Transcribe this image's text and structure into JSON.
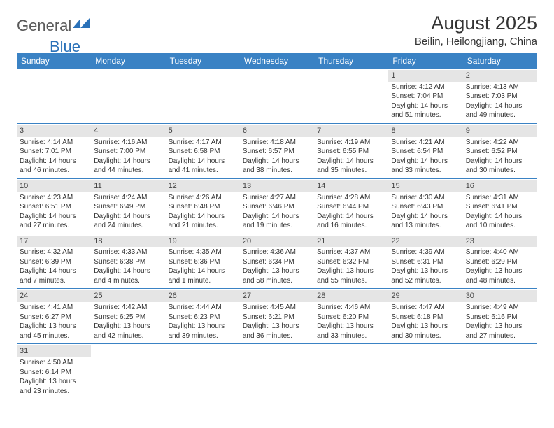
{
  "logo": {
    "text1": "General",
    "text2": "Blue"
  },
  "title": "August 2025",
  "location": "Beilin, Heilongjiang, China",
  "colors": {
    "header_bg": "#3a82c4",
    "header_text": "#ffffff",
    "daynum_bg": "#e5e5e5",
    "border": "#3a82c4",
    "logo_gray": "#5a5a5a",
    "logo_blue": "#2a71b8"
  },
  "weekdays": [
    "Sunday",
    "Monday",
    "Tuesday",
    "Wednesday",
    "Thursday",
    "Friday",
    "Saturday"
  ],
  "weeks": [
    [
      null,
      null,
      null,
      null,
      null,
      {
        "d": "1",
        "sr": "Sunrise: 4:12 AM",
        "ss": "Sunset: 7:04 PM",
        "dl1": "Daylight: 14 hours",
        "dl2": "and 51 minutes."
      },
      {
        "d": "2",
        "sr": "Sunrise: 4:13 AM",
        "ss": "Sunset: 7:03 PM",
        "dl1": "Daylight: 14 hours",
        "dl2": "and 49 minutes."
      }
    ],
    [
      {
        "d": "3",
        "sr": "Sunrise: 4:14 AM",
        "ss": "Sunset: 7:01 PM",
        "dl1": "Daylight: 14 hours",
        "dl2": "and 46 minutes."
      },
      {
        "d": "4",
        "sr": "Sunrise: 4:16 AM",
        "ss": "Sunset: 7:00 PM",
        "dl1": "Daylight: 14 hours",
        "dl2": "and 44 minutes."
      },
      {
        "d": "5",
        "sr": "Sunrise: 4:17 AM",
        "ss": "Sunset: 6:58 PM",
        "dl1": "Daylight: 14 hours",
        "dl2": "and 41 minutes."
      },
      {
        "d": "6",
        "sr": "Sunrise: 4:18 AM",
        "ss": "Sunset: 6:57 PM",
        "dl1": "Daylight: 14 hours",
        "dl2": "and 38 minutes."
      },
      {
        "d": "7",
        "sr": "Sunrise: 4:19 AM",
        "ss": "Sunset: 6:55 PM",
        "dl1": "Daylight: 14 hours",
        "dl2": "and 35 minutes."
      },
      {
        "d": "8",
        "sr": "Sunrise: 4:21 AM",
        "ss": "Sunset: 6:54 PM",
        "dl1": "Daylight: 14 hours",
        "dl2": "and 33 minutes."
      },
      {
        "d": "9",
        "sr": "Sunrise: 4:22 AM",
        "ss": "Sunset: 6:52 PM",
        "dl1": "Daylight: 14 hours",
        "dl2": "and 30 minutes."
      }
    ],
    [
      {
        "d": "10",
        "sr": "Sunrise: 4:23 AM",
        "ss": "Sunset: 6:51 PM",
        "dl1": "Daylight: 14 hours",
        "dl2": "and 27 minutes."
      },
      {
        "d": "11",
        "sr": "Sunrise: 4:24 AM",
        "ss": "Sunset: 6:49 PM",
        "dl1": "Daylight: 14 hours",
        "dl2": "and 24 minutes."
      },
      {
        "d": "12",
        "sr": "Sunrise: 4:26 AM",
        "ss": "Sunset: 6:48 PM",
        "dl1": "Daylight: 14 hours",
        "dl2": "and 21 minutes."
      },
      {
        "d": "13",
        "sr": "Sunrise: 4:27 AM",
        "ss": "Sunset: 6:46 PM",
        "dl1": "Daylight: 14 hours",
        "dl2": "and 19 minutes."
      },
      {
        "d": "14",
        "sr": "Sunrise: 4:28 AM",
        "ss": "Sunset: 6:44 PM",
        "dl1": "Daylight: 14 hours",
        "dl2": "and 16 minutes."
      },
      {
        "d": "15",
        "sr": "Sunrise: 4:30 AM",
        "ss": "Sunset: 6:43 PM",
        "dl1": "Daylight: 14 hours",
        "dl2": "and 13 minutes."
      },
      {
        "d": "16",
        "sr": "Sunrise: 4:31 AM",
        "ss": "Sunset: 6:41 PM",
        "dl1": "Daylight: 14 hours",
        "dl2": "and 10 minutes."
      }
    ],
    [
      {
        "d": "17",
        "sr": "Sunrise: 4:32 AM",
        "ss": "Sunset: 6:39 PM",
        "dl1": "Daylight: 14 hours",
        "dl2": "and 7 minutes."
      },
      {
        "d": "18",
        "sr": "Sunrise: 4:33 AM",
        "ss": "Sunset: 6:38 PM",
        "dl1": "Daylight: 14 hours",
        "dl2": "and 4 minutes."
      },
      {
        "d": "19",
        "sr": "Sunrise: 4:35 AM",
        "ss": "Sunset: 6:36 PM",
        "dl1": "Daylight: 14 hours",
        "dl2": "and 1 minute."
      },
      {
        "d": "20",
        "sr": "Sunrise: 4:36 AM",
        "ss": "Sunset: 6:34 PM",
        "dl1": "Daylight: 13 hours",
        "dl2": "and 58 minutes."
      },
      {
        "d": "21",
        "sr": "Sunrise: 4:37 AM",
        "ss": "Sunset: 6:32 PM",
        "dl1": "Daylight: 13 hours",
        "dl2": "and 55 minutes."
      },
      {
        "d": "22",
        "sr": "Sunrise: 4:39 AM",
        "ss": "Sunset: 6:31 PM",
        "dl1": "Daylight: 13 hours",
        "dl2": "and 52 minutes."
      },
      {
        "d": "23",
        "sr": "Sunrise: 4:40 AM",
        "ss": "Sunset: 6:29 PM",
        "dl1": "Daylight: 13 hours",
        "dl2": "and 48 minutes."
      }
    ],
    [
      {
        "d": "24",
        "sr": "Sunrise: 4:41 AM",
        "ss": "Sunset: 6:27 PM",
        "dl1": "Daylight: 13 hours",
        "dl2": "and 45 minutes."
      },
      {
        "d": "25",
        "sr": "Sunrise: 4:42 AM",
        "ss": "Sunset: 6:25 PM",
        "dl1": "Daylight: 13 hours",
        "dl2": "and 42 minutes."
      },
      {
        "d": "26",
        "sr": "Sunrise: 4:44 AM",
        "ss": "Sunset: 6:23 PM",
        "dl1": "Daylight: 13 hours",
        "dl2": "and 39 minutes."
      },
      {
        "d": "27",
        "sr": "Sunrise: 4:45 AM",
        "ss": "Sunset: 6:21 PM",
        "dl1": "Daylight: 13 hours",
        "dl2": "and 36 minutes."
      },
      {
        "d": "28",
        "sr": "Sunrise: 4:46 AM",
        "ss": "Sunset: 6:20 PM",
        "dl1": "Daylight: 13 hours",
        "dl2": "and 33 minutes."
      },
      {
        "d": "29",
        "sr": "Sunrise: 4:47 AM",
        "ss": "Sunset: 6:18 PM",
        "dl1": "Daylight: 13 hours",
        "dl2": "and 30 minutes."
      },
      {
        "d": "30",
        "sr": "Sunrise: 4:49 AM",
        "ss": "Sunset: 6:16 PM",
        "dl1": "Daylight: 13 hours",
        "dl2": "and 27 minutes."
      }
    ],
    [
      {
        "d": "31",
        "sr": "Sunrise: 4:50 AM",
        "ss": "Sunset: 6:14 PM",
        "dl1": "Daylight: 13 hours",
        "dl2": "and 23 minutes."
      },
      null,
      null,
      null,
      null,
      null,
      null
    ]
  ]
}
